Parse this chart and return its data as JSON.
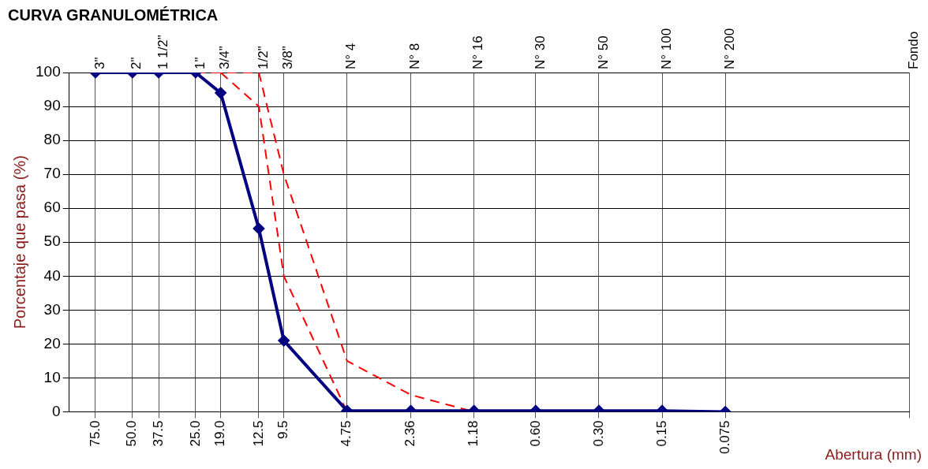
{
  "chart_data": {
    "type": "line",
    "title": "CURVA GRANULOMÉTRICA",
    "xlabel": "Abertura (mm)",
    "ylabel": "Porcentaje que pasa (%)",
    "log": "x",
    "xlim": [
      100,
      0.01
    ],
    "ylim": [
      0,
      100
    ],
    "xticks": [
      {
        "value": 75,
        "label": "75.0"
      },
      {
        "value": 50,
        "label": "50.0"
      },
      {
        "value": 37.5,
        "label": "37.5"
      },
      {
        "value": 25,
        "label": "25.0"
      },
      {
        "value": 19,
        "label": "19.0"
      },
      {
        "value": 12.5,
        "label": "12.5"
      },
      {
        "value": 9.5,
        "label": "9.5"
      },
      {
        "value": 4.75,
        "label": "4.75"
      },
      {
        "value": 2.36,
        "label": "2.36"
      },
      {
        "value": 1.18,
        "label": "1.18"
      },
      {
        "value": 0.6,
        "label": "0.60"
      },
      {
        "value": 0.3,
        "label": "0.30"
      },
      {
        "value": 0.15,
        "label": "0.15"
      },
      {
        "value": 0.075,
        "label": "0.075"
      },
      {
        "value": 0.01,
        "label": null
      }
    ],
    "annotations": [
      "3\"",
      "2\"",
      "1 1/2\"",
      "1\"",
      "3/4\"",
      "1/2\"",
      "3/8\"",
      "N° 4",
      "N° 8",
      "N° 16",
      "N° 30",
      "N° 50",
      "N° 100",
      "N° 200",
      "Fondo"
    ],
    "yticks": [
      0,
      10,
      20,
      30,
      40,
      50,
      60,
      70,
      80,
      90,
      100
    ],
    "grid": true,
    "legend": false,
    "series": [
      {
        "color": "#000080",
        "marker": "diamond",
        "line_style": "solid",
        "x": [
          75,
          50,
          37.5,
          25,
          19,
          12.5,
          9.5,
          4.75,
          2.36,
          1.18,
          0.6,
          0.3,
          0.15,
          0.075
        ],
        "values": [
          100,
          100,
          100,
          100,
          94,
          54,
          21,
          0.3,
          0.3,
          0.3,
          0.3,
          0.3,
          0.3,
          0
        ]
      },
      {
        "color": "#ff0000",
        "marker": "none",
        "line_style": "dashed",
        "x": [
          25,
          12.5,
          9.5,
          4.75,
          2.36,
          1.18
        ],
        "values": [
          100,
          100,
          70,
          15,
          5,
          0
        ]
      },
      {
        "color": "#ff0000",
        "marker": "none",
        "line_style": "dashed",
        "x": [
          19,
          12.5,
          9.5,
          4.75
        ],
        "values": [
          100,
          90,
          40,
          0
        ]
      }
    ]
  }
}
